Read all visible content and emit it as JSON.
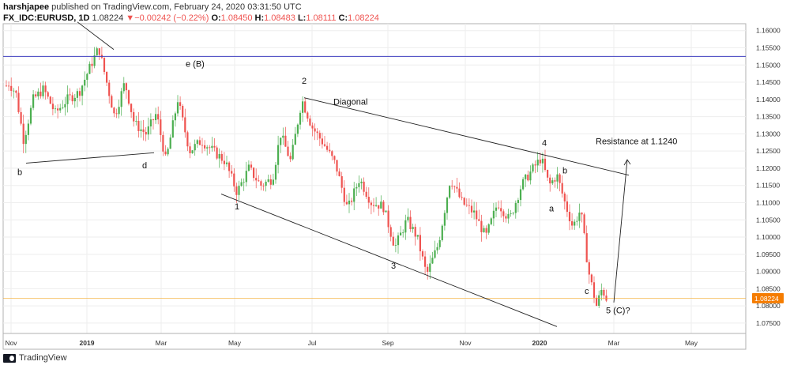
{
  "header": {
    "author": "harshjapee",
    "published": "published on TradingView.com, February 24, 2020 03:31:50 UTC",
    "symbol": "FX_IDC:EURUSD, 1D",
    "last": "1.08224",
    "change_arrow": "▼",
    "change": "−0.00242 (−0.22%)",
    "o_label": "O:",
    "o": "1.08450",
    "h_label": "H:",
    "h": "1.08483",
    "l_label": "L:",
    "l": "1.08111",
    "c_label": "C:",
    "c": "1.08224"
  },
  "footer": {
    "brand": "TradingView"
  },
  "colors": {
    "up": "#4caf50",
    "down": "#ef5350",
    "hline": "#3f3fbf",
    "price_line": "#f5a623",
    "price_tag": "#f57c00"
  },
  "chart_data": {
    "type": "candlestick",
    "title": "",
    "ylim": [
      1.072,
      1.162
    ],
    "yticks": [
      "1.16000",
      "1.15500",
      "1.15000",
      "1.14500",
      "1.14000",
      "1.13500",
      "1.13000",
      "1.12500",
      "1.12000",
      "1.11500",
      "1.11000",
      "1.10500",
      "1.10000",
      "1.09500",
      "1.09000",
      "1.08500",
      "1.08000",
      "1.07500"
    ],
    "yvalues": [
      1.16,
      1.155,
      1.15,
      1.145,
      1.14,
      1.135,
      1.13,
      1.125,
      1.12,
      1.115,
      1.11,
      1.105,
      1.1,
      1.095,
      1.09,
      1.085,
      1.08,
      1.075
    ],
    "xticks": [
      "Nov",
      "2019",
      "Mar",
      "May",
      "Jul",
      "Sep",
      "Nov",
      "2020",
      "Mar",
      "May"
    ],
    "xtick_bold": [
      false,
      true,
      false,
      false,
      false,
      false,
      false,
      true,
      false,
      false
    ],
    "current_price_label": "1.08224",
    "current_price": 1.08224,
    "horizontal_level": 1.1525,
    "close_path": [
      [
        0,
        1.14
      ],
      [
        10,
        1.145
      ],
      [
        20,
        1.142
      ],
      [
        30,
        1.128
      ],
      [
        42,
        1.14
      ],
      [
        55,
        1.143
      ],
      [
        70,
        1.136
      ],
      [
        85,
        1.14
      ],
      [
        100,
        1.142
      ],
      [
        115,
        1.15
      ],
      [
        125,
        1.155
      ],
      [
        135,
        1.145
      ],
      [
        145,
        1.135
      ],
      [
        158,
        1.145
      ],
      [
        170,
        1.133
      ],
      [
        185,
        1.13
      ],
      [
        198,
        1.136
      ],
      [
        210,
        1.122
      ],
      [
        225,
        1.14
      ],
      [
        240,
        1.125
      ],
      [
        255,
        1.128
      ],
      [
        270,
        1.125
      ],
      [
        285,
        1.122
      ],
      [
        300,
        1.113
      ],
      [
        315,
        1.12
      ],
      [
        330,
        1.115
      ],
      [
        345,
        1.117
      ],
      [
        355,
        1.13
      ],
      [
        368,
        1.122
      ],
      [
        382,
        1.14
      ],
      [
        395,
        1.132
      ],
      [
        410,
        1.127
      ],
      [
        425,
        1.121
      ],
      [
        440,
        1.108
      ],
      [
        455,
        1.117
      ],
      [
        470,
        1.11
      ],
      [
        485,
        1.109
      ],
      [
        500,
        1.097
      ],
      [
        515,
        1.105
      ],
      [
        528,
        1.1
      ],
      [
        540,
        1.089
      ],
      [
        555,
        1.098
      ],
      [
        570,
        1.117
      ],
      [
        585,
        1.11
      ],
      [
        600,
        1.107
      ],
      [
        615,
        1.1
      ],
      [
        630,
        1.11
      ],
      [
        645,
        1.105
      ],
      [
        660,
        1.115
      ],
      [
        675,
        1.12
      ],
      [
        685,
        1.123
      ],
      [
        695,
        1.115
      ],
      [
        705,
        1.118
      ],
      [
        715,
        1.11
      ],
      [
        725,
        1.103
      ],
      [
        735,
        1.108
      ],
      [
        745,
        1.09
      ],
      [
        755,
        1.08
      ],
      [
        762,
        1.085
      ],
      [
        768,
        1.082
      ]
    ],
    "trendlines": [
      [
        [
          98,
          1.1625
        ],
        [
          144,
          1.1545
        ]
      ],
      [
        [
          33,
          1.1215
        ],
        [
          195,
          1.1245
        ]
      ],
      [
        [
          385,
          1.1405
        ],
        [
          796,
          1.118
        ]
      ],
      [
        [
          280,
          1.1125
        ],
        [
          705,
          1.074
        ]
      ],
      [
        [
          777,
          1.081
        ],
        [
          794,
          1.1225
        ]
      ]
    ],
    "annotations": [
      {
        "text": "e (B)",
        "x": 235,
        "y": 1.1495
      },
      {
        "text": "2",
        "x": 382,
        "y": 1.1445
      },
      {
        "text": "Diagonal",
        "x": 422,
        "y": 1.1385
      },
      {
        "text": "4",
        "x": 686,
        "y": 1.1265
      },
      {
        "text": "Resistance at 1.1240",
        "x": 754,
        "y": 1.127
      },
      {
        "text": "b",
        "x": 712,
        "y": 1.1185
      },
      {
        "text": "a",
        "x": 695,
        "y": 1.1075
      },
      {
        "text": "b",
        "x": 22,
        "y": 1.118
      },
      {
        "text": "d",
        "x": 180,
        "y": 1.12
      },
      {
        "text": "1",
        "x": 297,
        "y": 1.108
      },
      {
        "text": "3",
        "x": 495,
        "y": 1.0908
      },
      {
        "text": "c",
        "x": 740,
        "y": 1.0835
      },
      {
        "text": "5 (C)?",
        "x": 767,
        "y": 1.0778
      }
    ]
  }
}
